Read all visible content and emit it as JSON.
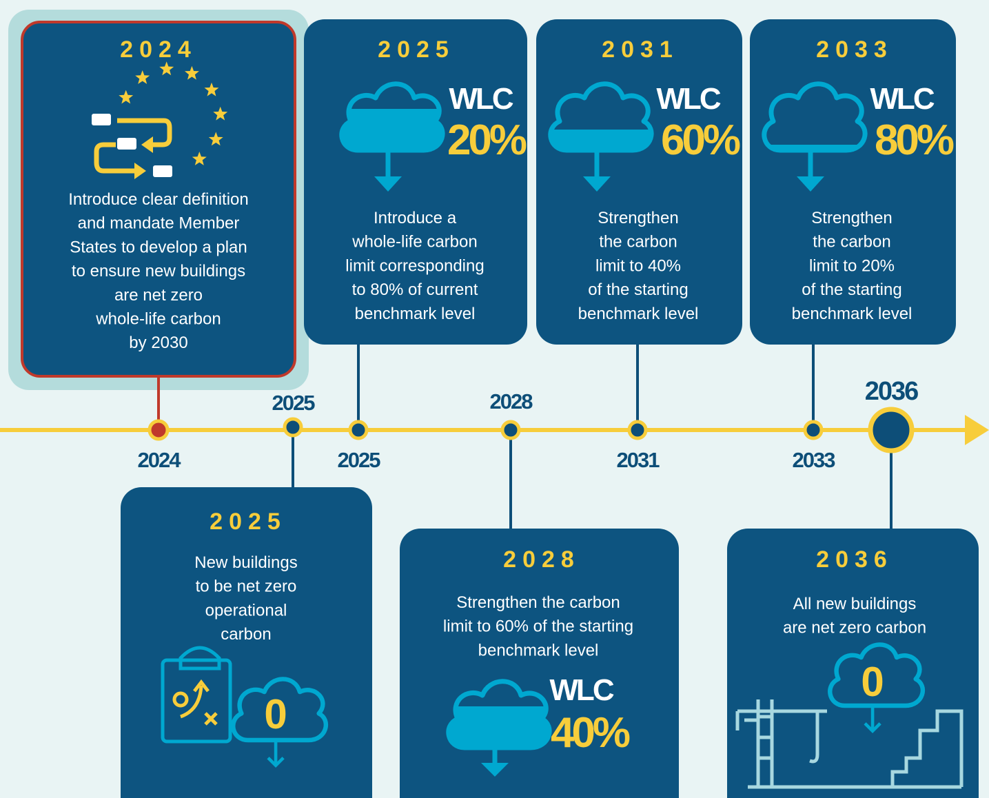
{
  "timeline": {
    "labels": [
      "2024",
      "2025",
      "2025",
      "2028",
      "2031",
      "2033",
      "2036"
    ]
  },
  "cards": [
    {
      "year": "2024",
      "lines": [
        "Introduce clear definition",
        "and mandate Member",
        "States to develop a plan",
        "to ensure new buildings",
        "are net zero",
        "whole-life carbon",
        "by 2030"
      ]
    },
    {
      "year": "2025",
      "metric_label": "WLC",
      "metric_value": "20%",
      "lines": [
        "Introduce a",
        "whole-life carbon",
        "limit corresponding",
        "to 80%  of current",
        "benchmark level"
      ]
    },
    {
      "year": "2031",
      "metric_label": "WLC",
      "metric_value": "60%",
      "lines": [
        "Strengthen",
        "the carbon",
        "limit to 40%",
        "of the starting",
        "benchmark level"
      ]
    },
    {
      "year": "2033",
      "metric_label": "WLC",
      "metric_value": "80%",
      "lines": [
        "Strengthen",
        "the carbon",
        "limit to 20%",
        "of the starting",
        "benchmark level"
      ]
    },
    {
      "year": "2025",
      "lines": [
        "New buildings",
        "to be net zero",
        "operational",
        "carbon"
      ],
      "icon_text": "0"
    },
    {
      "year": "2028",
      "lines": [
        "Strengthen the carbon",
        "limit to 60% of the starting",
        "benchmark level"
      ],
      "metric_label": "WLC",
      "metric_value": "40%"
    },
    {
      "year": "2036",
      "lines": [
        "All new buildings",
        "are net zero carbon"
      ],
      "icon_text": "0"
    }
  ]
}
